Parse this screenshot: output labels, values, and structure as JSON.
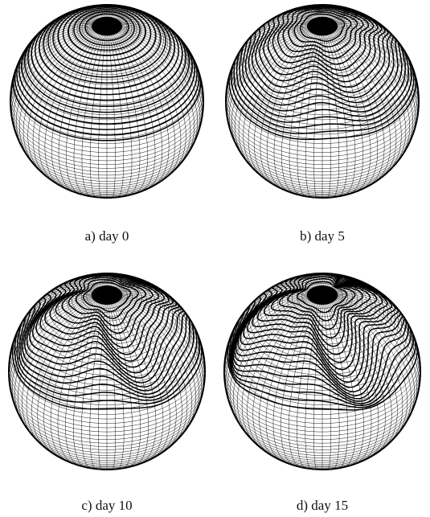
{
  "panels": [
    {
      "caption": "a) day 0"
    },
    {
      "caption": "b) day 5"
    },
    {
      "caption": "c) day 10"
    },
    {
      "caption": "d) day 15"
    }
  ]
}
